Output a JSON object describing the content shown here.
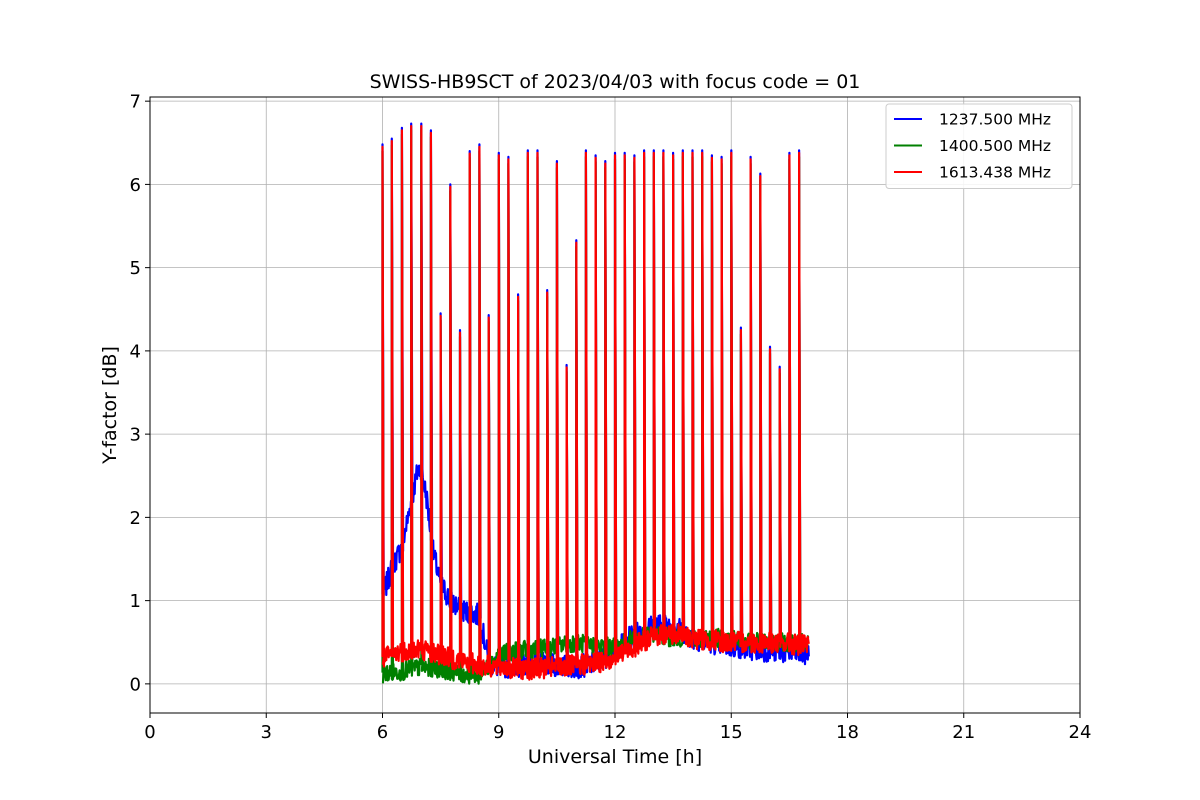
{
  "chart_data": {
    "type": "line",
    "title": "SWISS-HB9SCT of 2023/04/03 with focus code = 01",
    "xlabel": "Universal Time [h]",
    "ylabel": "Y-factor [dB]",
    "xlim": [
      0,
      24
    ],
    "ylim": [
      -0.35,
      7.05
    ],
    "xticks": [
      0,
      3,
      6,
      9,
      12,
      15,
      18,
      21,
      24
    ],
    "xtick_labels": [
      "0",
      "3",
      "6",
      "9",
      "12",
      "15",
      "18",
      "21",
      "24"
    ],
    "yticks": [
      0,
      1,
      2,
      3,
      4,
      5,
      6,
      7
    ],
    "ytick_labels": [
      "0",
      "1",
      "2",
      "3",
      "4",
      "5",
      "6",
      "7"
    ],
    "grid": true,
    "legend_position": "top-right",
    "series": [
      {
        "name": "1237.500 MHz",
        "color": "#0000ff",
        "x": [
          6.0,
          6.25,
          6.5,
          6.75,
          6.9,
          7.0,
          7.15,
          7.3,
          7.5,
          7.75,
          8.0,
          8.25,
          8.5,
          8.75,
          9.0,
          9.5,
          10.0,
          10.5,
          11.0,
          11.5,
          12.0,
          12.5,
          13.0,
          13.5,
          14.0,
          14.5,
          15.0,
          15.5,
          16.0,
          16.5,
          17.0
        ],
        "y": [
          1.05,
          1.4,
          1.65,
          2.2,
          2.55,
          2.6,
          2.2,
          1.6,
          1.2,
          1.0,
          0.9,
          0.85,
          0.82,
          0.25,
          0.2,
          0.22,
          0.25,
          0.22,
          0.2,
          0.25,
          0.4,
          0.6,
          0.7,
          0.7,
          0.55,
          0.5,
          0.45,
          0.42,
          0.4,
          0.38,
          0.35
        ]
      },
      {
        "name": "1400.500 MHz",
        "color": "#008000",
        "x": [
          6.0,
          6.5,
          7.0,
          7.5,
          8.0,
          8.5,
          9.0,
          9.5,
          10.0,
          10.5,
          11.0,
          11.5,
          12.0,
          12.5,
          13.0,
          13.5,
          14.0,
          14.5,
          15.0,
          15.5,
          16.0,
          16.5,
          17.0
        ],
        "y": [
          0.12,
          0.15,
          0.2,
          0.18,
          0.12,
          0.1,
          0.35,
          0.4,
          0.42,
          0.45,
          0.5,
          0.45,
          0.45,
          0.55,
          0.6,
          0.55,
          0.55,
          0.55,
          0.55,
          0.52,
          0.5,
          0.5,
          0.5
        ]
      },
      {
        "name": "1613.438 MHz",
        "color": "#ff0000",
        "x": [
          6.0,
          6.5,
          7.0,
          7.5,
          8.0,
          8.5,
          9.0,
          9.5,
          10.0,
          10.5,
          11.0,
          11.5,
          12.0,
          12.5,
          13.0,
          13.5,
          14.0,
          14.5,
          15.0,
          15.5,
          16.0,
          16.5,
          17.0
        ],
        "y": [
          0.3,
          0.4,
          0.42,
          0.35,
          0.28,
          0.22,
          0.2,
          0.18,
          0.18,
          0.2,
          0.22,
          0.25,
          0.32,
          0.45,
          0.58,
          0.6,
          0.55,
          0.52,
          0.5,
          0.5,
          0.5,
          0.48,
          0.45
        ]
      }
    ],
    "spikes": {
      "note_series": "1613.438 MHz",
      "x": [
        6.0,
        6.24,
        6.5,
        6.74,
        7.0,
        7.25,
        7.5,
        7.75,
        8.0,
        8.25,
        8.5,
        8.74,
        9.0,
        9.25,
        9.5,
        9.75,
        10.0,
        10.25,
        10.5,
        10.75,
        11.0,
        11.25,
        11.5,
        11.75,
        12.0,
        12.25,
        12.5,
        12.75,
        13.0,
        13.25,
        13.5,
        13.75,
        14.0,
        14.25,
        14.5,
        14.75,
        15.0,
        15.25,
        15.5,
        15.75,
        16.0,
        16.25,
        16.5,
        16.75
      ],
      "y": [
        6.45,
        6.52,
        6.65,
        6.7,
        6.7,
        6.62,
        4.42,
        5.97,
        4.22,
        6.37,
        6.45,
        4.4,
        6.35,
        6.3,
        4.65,
        6.38,
        6.38,
        4.7,
        6.25,
        3.8,
        5.3,
        6.38,
        6.32,
        6.25,
        6.35,
        6.35,
        6.32,
        6.38,
        6.38,
        6.38,
        6.35,
        6.38,
        6.38,
        6.38,
        6.32,
        6.3,
        6.38,
        4.25,
        6.3,
        6.1,
        4.02,
        3.78,
        6.35,
        6.38
      ]
    }
  }
}
